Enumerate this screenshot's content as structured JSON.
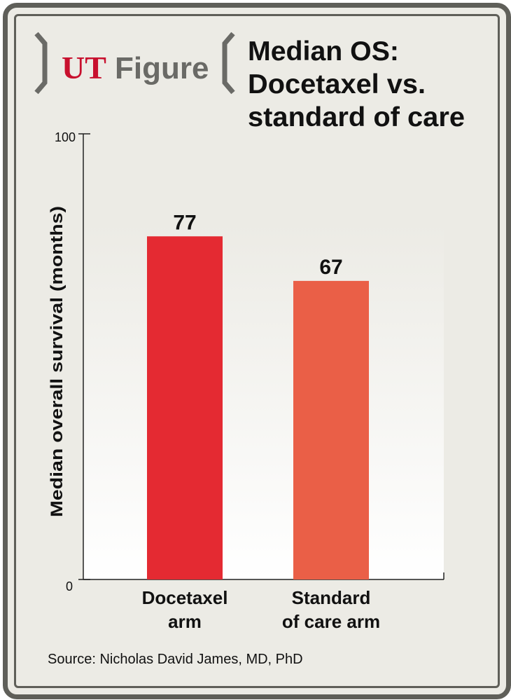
{
  "branding": {
    "logo_ut": "UT",
    "logo_figure": "Figure",
    "accent_color": "#c8102e",
    "logo_gray": "#6a6a66"
  },
  "title_lines": [
    "Median OS:",
    "Docetaxel vs.",
    "standard of care"
  ],
  "source": "Source: Nicholas David James, MD, PhD",
  "chart_data": {
    "type": "bar",
    "categories": [
      [
        "Docetaxel",
        "arm"
      ],
      [
        "Standard",
        "of care arm"
      ]
    ],
    "values": [
      77,
      67
    ],
    "data_labels": [
      "77",
      "67"
    ],
    "colors": [
      "#e42a32",
      "#ea5f47"
    ],
    "ylabel": "Median overall survival (months)",
    "ylim": [
      0,
      100
    ],
    "yticks": [
      "0",
      "100"
    ],
    "grid": false
  }
}
